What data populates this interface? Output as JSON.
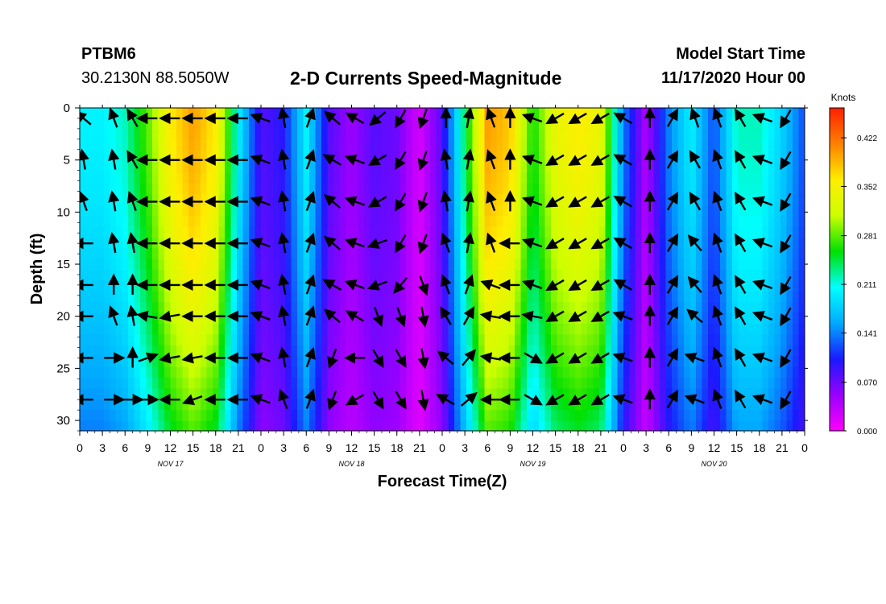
{
  "header": {
    "station": "PTBM6",
    "location": "30.2130N 88.5050W",
    "title": "2-D Currents Speed-Magnitude",
    "model_start_label": "Model Start Time",
    "model_start_value": "11/17/2020 Hour 00"
  },
  "chart_data": {
    "type": "heatmap",
    "title": "2-D Currents Speed-Magnitude",
    "xlabel": "Forecast Time(Z)",
    "ylabel": "Depth (ft)",
    "x_range_hours": [
      0,
      96
    ],
    "y_range_ft": [
      0,
      31
    ],
    "x_ticks": [
      "0",
      "3",
      "6",
      "9",
      "12",
      "15",
      "18",
      "21",
      "0",
      "3",
      "6",
      "9",
      "12",
      "15",
      "18",
      "21",
      "0",
      "3",
      "6",
      "9",
      "12",
      "15",
      "18",
      "21",
      "0",
      "3",
      "6",
      "9",
      "12",
      "15",
      "18",
      "21",
      "0"
    ],
    "y_ticks": [
      "0",
      "5",
      "10",
      "15",
      "20",
      "25",
      "30"
    ],
    "date_labels": [
      {
        "text": "NOV 17",
        "hour": 12
      },
      {
        "text": "NOV 18",
        "hour": 36
      },
      {
        "text": "NOV 19",
        "hour": 60
      },
      {
        "text": "NOV 20",
        "hour": 84
      }
    ],
    "colorbar": {
      "title": "Knots",
      "min": 0.0,
      "max": 0.465,
      "tick_labels": [
        "0.422",
        "0.352",
        "0.281",
        "0.211",
        "0.141",
        "0.070",
        "0.000"
      ],
      "colors": [
        "#ff00ff",
        "#9900ff",
        "#1a1aff",
        "#00aaff",
        "#00ffff",
        "#00e000",
        "#ccff00",
        "#ffee00",
        "#ff8000",
        "#ff2000"
      ]
    },
    "speed_profile_by_hour": [
      {
        "hour": 0,
        "speed": 0.2
      },
      {
        "hour": 3,
        "speed": 0.2
      },
      {
        "hour": 6,
        "speed": 0.22
      },
      {
        "hour": 9,
        "speed": 0.28
      },
      {
        "hour": 12,
        "speed": 0.36
      },
      {
        "hour": 15,
        "speed": 0.4
      },
      {
        "hour": 18,
        "speed": 0.36
      },
      {
        "hour": 21,
        "speed": 0.2
      },
      {
        "hour": 24,
        "speed": 0.08
      },
      {
        "hour": 27,
        "speed": 0.1
      },
      {
        "hour": 30,
        "speed": 0.2
      },
      {
        "hour": 33,
        "speed": 0.08
      },
      {
        "hour": 36,
        "speed": 0.05
      },
      {
        "hour": 39,
        "speed": 0.08
      },
      {
        "hour": 42,
        "speed": 0.07
      },
      {
        "hour": 45,
        "speed": 0.02
      },
      {
        "hour": 48,
        "speed": 0.08
      },
      {
        "hour": 51,
        "speed": 0.24
      },
      {
        "hour": 54,
        "speed": 0.4
      },
      {
        "hour": 57,
        "speed": 0.38
      },
      {
        "hour": 60,
        "speed": 0.26
      },
      {
        "hour": 63,
        "speed": 0.34
      },
      {
        "hour": 66,
        "speed": 0.36
      },
      {
        "hour": 69,
        "speed": 0.34
      },
      {
        "hour": 72,
        "speed": 0.14
      },
      {
        "hour": 75,
        "speed": 0.04
      },
      {
        "hour": 78,
        "speed": 0.14
      },
      {
        "hour": 81,
        "speed": 0.2
      },
      {
        "hour": 84,
        "speed": 0.12
      },
      {
        "hour": 87,
        "speed": 0.22
      },
      {
        "hour": 90,
        "speed": 0.22
      },
      {
        "hour": 93,
        "speed": 0.18
      },
      {
        "hour": 96,
        "speed": 0.12
      }
    ],
    "vector_hours": [
      0.5,
      4.5,
      7,
      9,
      12,
      15,
      18,
      21,
      24,
      27,
      30.5,
      33.5,
      36.5,
      39.5,
      42.5,
      45.5,
      48.5,
      51.5,
      54.5,
      57,
      60,
      63,
      66,
      69,
      72,
      75.5,
      78.5,
      81.5,
      84.5,
      87.5,
      90.5,
      93.5
    ],
    "vector_depths_ft": [
      1,
      5,
      9,
      13,
      17,
      20,
      24,
      28
    ],
    "vector_angles_deg": [
      [
        220,
        260,
        250,
        180,
        180,
        180,
        180,
        180
      ],
      [
        250,
        260,
        260,
        260,
        270,
        250,
        0,
        0
      ],
      [
        240,
        240,
        250,
        260,
        270,
        260,
        270,
        0
      ],
      [
        180,
        180,
        180,
        180,
        180,
        190,
        340,
        0
      ],
      [
        180,
        180,
        180,
        180,
        180,
        170,
        170,
        180
      ],
      [
        180,
        180,
        180,
        180,
        180,
        180,
        170,
        160
      ],
      [
        180,
        180,
        180,
        180,
        180,
        180,
        180,
        180
      ],
      [
        180,
        180,
        180,
        180,
        180,
        180,
        180,
        180
      ],
      [
        200,
        200,
        200,
        200,
        200,
        200,
        200,
        200
      ],
      [
        260,
        260,
        260,
        260,
        260,
        260,
        260,
        250
      ],
      [
        290,
        290,
        290,
        290,
        290,
        290,
        290,
        290
      ],
      [
        220,
        210,
        220,
        220,
        210,
        220,
        110,
        110
      ],
      [
        210,
        200,
        200,
        200,
        200,
        210,
        180,
        150
      ],
      [
        140,
        150,
        150,
        160,
        160,
        70,
        60,
        60
      ],
      [
        120,
        120,
        120,
        120,
        130,
        70,
        60,
        60
      ],
      [
        110,
        110,
        110,
        110,
        70,
        80,
        80,
        80
      ],
      [
        270,
        260,
        260,
        250,
        250,
        240,
        220,
        210
      ],
      [
        280,
        280,
        280,
        280,
        290,
        300,
        310,
        320
      ],
      [
        250,
        250,
        250,
        250,
        200,
        190,
        190,
        180
      ],
      [
        270,
        270,
        270,
        180,
        180,
        180,
        180,
        180
      ],
      [
        200,
        200,
        200,
        200,
        200,
        190,
        30,
        30
      ],
      [
        150,
        150,
        150,
        150,
        150,
        150,
        150,
        150
      ],
      [
        150,
        150,
        150,
        150,
        150,
        150,
        150,
        150
      ],
      [
        150,
        150,
        150,
        150,
        150,
        150,
        150,
        150
      ],
      [
        210,
        210,
        210,
        210,
        210,
        200,
        200,
        200
      ],
      [
        270,
        270,
        270,
        270,
        270,
        270,
        270,
        270
      ],
      [
        300,
        300,
        300,
        300,
        300,
        300,
        300,
        300
      ],
      [
        250,
        240,
        240,
        230,
        230,
        220,
        200,
        200
      ],
      [
        250,
        250,
        250,
        250,
        250,
        250,
        250,
        250
      ],
      [
        240,
        240,
        240,
        240,
        240,
        240,
        240,
        240
      ],
      [
        200,
        200,
        200,
        200,
        200,
        200,
        200,
        200
      ],
      [
        120,
        120,
        120,
        120,
        120,
        120,
        120,
        120
      ]
    ]
  }
}
